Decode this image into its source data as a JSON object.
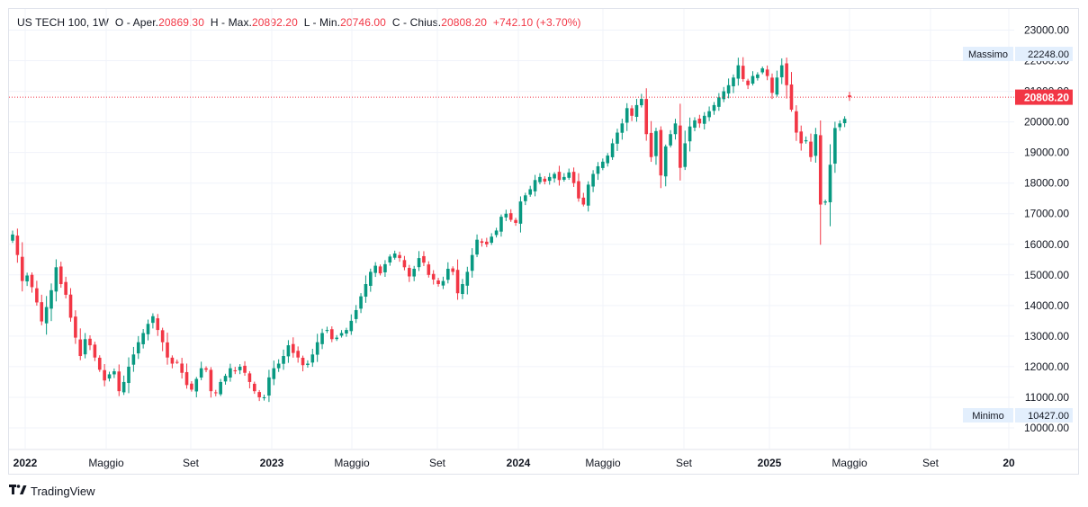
{
  "header": {
    "symbol": "US TECH 100, 1W",
    "open_label": "O - Aper.",
    "open_value": "20869.30",
    "high_label": "H - Max.",
    "high_value": "20892.20",
    "low_label": "L - Min.",
    "low_value": "20746.00",
    "close_label": "C - Chius.",
    "close_value": "20808.20",
    "change": "+742.10 (+3.70%)"
  },
  "price_labels": {
    "high_label": "Massimo",
    "high_value": "22248.00",
    "low_label": "Minimo",
    "low_value": "10427.00",
    "current_value": "20808.20"
  },
  "branding": {
    "name": "TradingView"
  },
  "colors": {
    "up": "#089981",
    "down": "#f23645",
    "grid": "#f0f3fa",
    "axis_text": "#131722",
    "price_line": "#f23645",
    "tag_bg": "#e3effd"
  },
  "chart_data": {
    "type": "candlestick",
    "timeframe": "1W",
    "title": "US TECH 100, 1W",
    "ylim": [
      9500,
      23400
    ],
    "y_ticks": [
      10000,
      11000,
      12000,
      13000,
      14000,
      15000,
      16000,
      17000,
      18000,
      19000,
      20000,
      21000,
      22000,
      23000
    ],
    "y_tick_labels": [
      "10000.00",
      "11000.00",
      "12000.00",
      "13000.00",
      "14000.00",
      "15000.00",
      "16000.00",
      "17000.00",
      "18000.00",
      "19000.00",
      "20000.00",
      "21000.00",
      "22000.00",
      "23000.00"
    ],
    "x_tick_labels": [
      "2022",
      "Maggio",
      "Set",
      "2023",
      "Maggio",
      "Set",
      "2024",
      "Maggio",
      "Set",
      "2025",
      "Maggio",
      "Set",
      "20"
    ],
    "x_tick_bold": [
      true,
      false,
      false,
      true,
      false,
      false,
      true,
      false,
      false,
      true,
      false,
      false,
      true
    ],
    "current_price": 20808.2,
    "closes": [
      16320,
      15650,
      14800,
      14980,
      14600,
      14100,
      13480,
      13950,
      14500,
      15250,
      14700,
      14350,
      13600,
      12950,
      12350,
      12900,
      12700,
      12300,
      11900,
      11550,
      11750,
      11850,
      11200,
      11500,
      12000,
      12400,
      12800,
      13100,
      13400,
      13650,
      13200,
      12800,
      12300,
      12100,
      12150,
      11800,
      11400,
      11250,
      11600,
      11950,
      11900,
      11200,
      11150,
      11500,
      11700,
      11950,
      11850,
      12000,
      11800,
      11500,
      11200,
      11000,
      11000,
      11650,
      11950,
      12100,
      12350,
      12700,
      12450,
      12300,
      12050,
      12100,
      12400,
      12800,
      13100,
      13200,
      12900,
      12950,
      13100,
      13200,
      13500,
      13850,
      14300,
      14700,
      15100,
      15300,
      15050,
      15350,
      15600,
      15700,
      15550,
      15250,
      14950,
      15200,
      15550,
      15400,
      15000,
      14850,
      14700,
      14800,
      15200,
      15100,
      14400,
      14700,
      15100,
      15650,
      16150,
      16050,
      16000,
      16250,
      16450,
      16900,
      17000,
      16800,
      16700,
      17400,
      17600,
      17800,
      18100,
      18200,
      18050,
      18200,
      18300,
      18100,
      18200,
      18350,
      18000,
      17500,
      17300,
      17950,
      18300,
      18550,
      18700,
      18900,
      19300,
      19650,
      19950,
      20450,
      20200,
      20550,
      20750,
      19600,
      18850,
      19700,
      18250,
      19200,
      19600,
      19950,
      18500,
      19300,
      19850,
      20050,
      19950,
      20200,
      20350,
      20550,
      20800,
      21000,
      21200,
      21450,
      21850,
      21400,
      21200,
      21500,
      21550,
      21750,
      21500,
      20950,
      21450,
      21850,
      21200,
      20400,
      19650,
      19300,
      19400,
      18850,
      19600,
      17300,
      17400,
      18600,
      19800,
      19950,
      20100,
      20808
    ]
  }
}
